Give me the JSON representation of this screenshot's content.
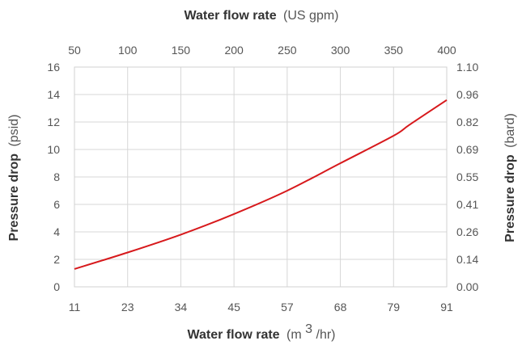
{
  "chart_data": {
    "type": "line",
    "x_axis_bottom": {
      "label_bold": "Water flow rate",
      "label_unit_pre": "(m",
      "label_unit_sup": "3",
      "label_unit_post": "/hr)",
      "ticks": [
        "11",
        "23",
        "34",
        "45",
        "57",
        "68",
        "79",
        "91"
      ],
      "range": [
        11,
        91
      ]
    },
    "x_axis_top": {
      "label_bold": "Water flow rate",
      "label_unit": "(US gpm)",
      "ticks": [
        "50",
        "100",
        "150",
        "200",
        "250",
        "300",
        "350",
        "400"
      ],
      "range": [
        50,
        400
      ]
    },
    "y_axis_left": {
      "label_bold": "Pressure drop",
      "label_unit": "(psid)",
      "ticks": [
        "0",
        "2",
        "4",
        "6",
        "8",
        "10",
        "12",
        "14",
        "16"
      ],
      "range": [
        0,
        16
      ]
    },
    "y_axis_right": {
      "label_bold": "Pressure drop",
      "label_unit": "(bard)",
      "ticks": [
        "0.00",
        "0.14",
        "0.26",
        "0.41",
        "0.55",
        "0.69",
        "0.82",
        "0.96",
        "1.10"
      ]
    },
    "grid": true,
    "series": [
      {
        "color": "#d7191c",
        "x_gpm": [
          50,
          100,
          150,
          200,
          250,
          300,
          350,
          365,
          400
        ],
        "y_psid": [
          1.3,
          2.5,
          3.8,
          5.3,
          7.0,
          9.0,
          11.0,
          11.8,
          13.6
        ]
      }
    ]
  }
}
